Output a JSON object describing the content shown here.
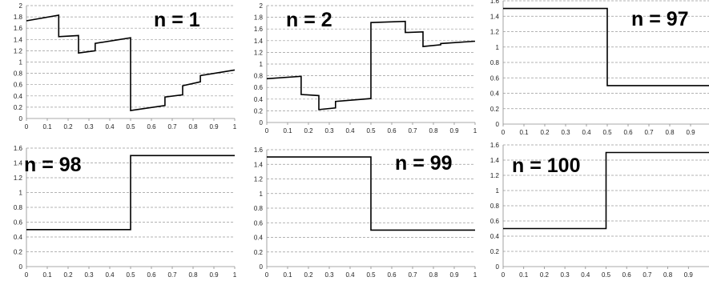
{
  "chart_data": [
    {
      "type": "line",
      "title": "n = 1",
      "xlim": [
        0,
        1
      ],
      "ylim": [
        0,
        2
      ],
      "xticks": [
        "0",
        "0.1",
        "0.2",
        "0.3",
        "0.4",
        "0.5",
        "0.6",
        "0.7",
        "0.8",
        "0.9",
        "1"
      ],
      "yticks": [
        "0",
        "0.2",
        "0.4",
        "0.6",
        "0.8",
        "1",
        "1.2",
        "1.4",
        "1.6",
        "1.8",
        "2"
      ],
      "grid": true,
      "series": [
        {
          "x": [
            0,
            0.155,
            0.155,
            0.25,
            0.25,
            0.33,
            0.33,
            0.5,
            0.5,
            0.665,
            0.665,
            0.75,
            0.75,
            0.835,
            0.835,
            1
          ],
          "y": [
            1.73,
            1.83,
            1.45,
            1.47,
            1.16,
            1.2,
            1.33,
            1.43,
            0.14,
            0.23,
            0.38,
            0.42,
            0.58,
            0.65,
            0.76,
            0.86
          ]
        }
      ]
    },
    {
      "type": "line",
      "title": "n = 2",
      "xlim": [
        0,
        1
      ],
      "ylim": [
        0,
        2
      ],
      "xticks": [
        "0",
        "0.1",
        "0.2",
        "0.3",
        "0.4",
        "0.5",
        "0.6",
        "0.7",
        "0.8",
        "0.9",
        "1"
      ],
      "yticks": [
        "0",
        "0.2",
        "0.4",
        "0.6",
        "0.8",
        "1",
        "1.2",
        "1.4",
        "1.6",
        "1.8",
        "2"
      ],
      "grid": true,
      "series": [
        {
          "x": [
            0,
            0.165,
            0.165,
            0.25,
            0.25,
            0.33,
            0.33,
            0.5,
            0.5,
            0.665,
            0.665,
            0.75,
            0.75,
            0.835,
            0.835,
            1
          ],
          "y": [
            0.75,
            0.79,
            0.48,
            0.46,
            0.22,
            0.25,
            0.36,
            0.41,
            1.71,
            1.73,
            1.54,
            1.55,
            1.3,
            1.33,
            1.35,
            1.39
          ]
        }
      ]
    },
    {
      "type": "line",
      "title": "n = 97",
      "xlim": [
        0,
        1
      ],
      "ylim": [
        0,
        1.6
      ],
      "xticks": [
        "0",
        "0.1",
        "0.2",
        "0.3",
        "0.4",
        "0.5",
        "0.6",
        "0.7",
        "0.8",
        "0.9"
      ],
      "yticks": [
        "0",
        "0.2",
        "0.4",
        "0.6",
        "0.8",
        "1",
        "1.2",
        "1.4",
        "1.6"
      ],
      "grid": true,
      "series": [
        {
          "x": [
            0,
            0.5,
            0.5,
            1
          ],
          "y": [
            1.5,
            1.5,
            0.5,
            0.5
          ]
        }
      ]
    },
    {
      "type": "line",
      "title": "n = 98",
      "xlim": [
        0,
        1
      ],
      "ylim": [
        0,
        1.6
      ],
      "xticks": [
        "0",
        "0.1",
        "0.2",
        "0.3",
        "0.4",
        "0.5",
        "0.6",
        "0.7",
        "0.8",
        "0.9",
        "1"
      ],
      "yticks": [
        "0",
        "0.2",
        "0.4",
        "0.6",
        "0.8",
        "1",
        "1.2",
        "1.4",
        "1.6"
      ],
      "grid": true,
      "series": [
        {
          "x": [
            0,
            0.5,
            0.5,
            1
          ],
          "y": [
            0.5,
            0.5,
            1.5,
            1.5
          ]
        }
      ]
    },
    {
      "type": "line",
      "title": "n = 99",
      "xlim": [
        0,
        1
      ],
      "ylim": [
        0,
        1.6
      ],
      "xticks": [
        "0",
        "0.1",
        "0.2",
        "0.3",
        "0.4",
        "0.5",
        "0.6",
        "0.7",
        "0.8",
        "0.9",
        "1"
      ],
      "yticks": [
        "0",
        "0.2",
        "0.4",
        "0.6",
        "0.8",
        "1",
        "1.2",
        "1.4",
        "1.6"
      ],
      "grid": true,
      "series": [
        {
          "x": [
            0,
            0.5,
            0.5,
            1
          ],
          "y": [
            1.5,
            1.5,
            0.5,
            0.5
          ]
        }
      ]
    },
    {
      "type": "line",
      "title": "n = 100",
      "xlim": [
        0,
        1
      ],
      "ylim": [
        0,
        1.6
      ],
      "xticks": [
        "0",
        "0.1",
        "0.2",
        "0.3",
        "0.4",
        "0.5",
        "0.6",
        "0.7",
        "0.8",
        "0.9"
      ],
      "yticks": [
        "0",
        "0.2",
        "0.4",
        "0.6",
        "0.8",
        "1",
        "1.2",
        "1.4",
        "1.6"
      ],
      "grid": true,
      "series": [
        {
          "x": [
            0,
            0.5,
            0.5,
            1
          ],
          "y": [
            0.5,
            0.5,
            1.5,
            1.5
          ]
        }
      ]
    }
  ]
}
